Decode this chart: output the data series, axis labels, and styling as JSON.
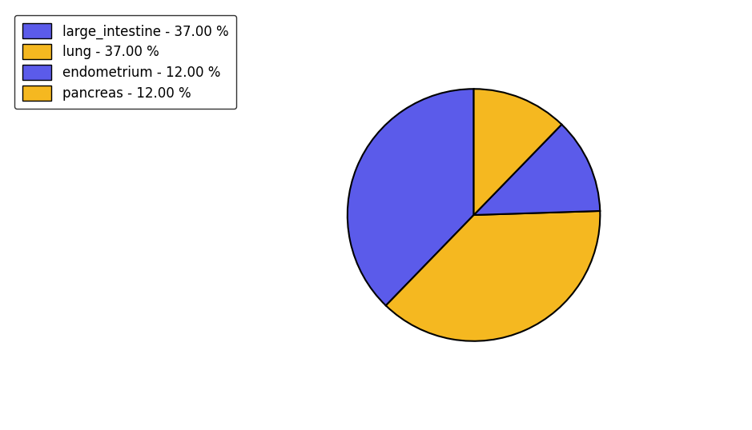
{
  "labels": [
    "large_intestine",
    "lung",
    "endometrium",
    "pancreas"
  ],
  "values": [
    37,
    37,
    12,
    12
  ],
  "colors": [
    "#5b5bea",
    "#f5b820",
    "#5b5bea",
    "#f5b820"
  ],
  "legend_labels": [
    "large_intestine - 37.00 %",
    "lung - 37.00 %",
    "endometrium - 12.00 %",
    "pancreas - 12.00 %"
  ],
  "legend_colors": [
    "#5b5bea",
    "#f5b820",
    "#5b5bea",
    "#f5b820"
  ],
  "startangle": 90,
  "figsize": [
    9.39,
    5.38
  ],
  "dpi": 100,
  "background_color": "#ffffff"
}
